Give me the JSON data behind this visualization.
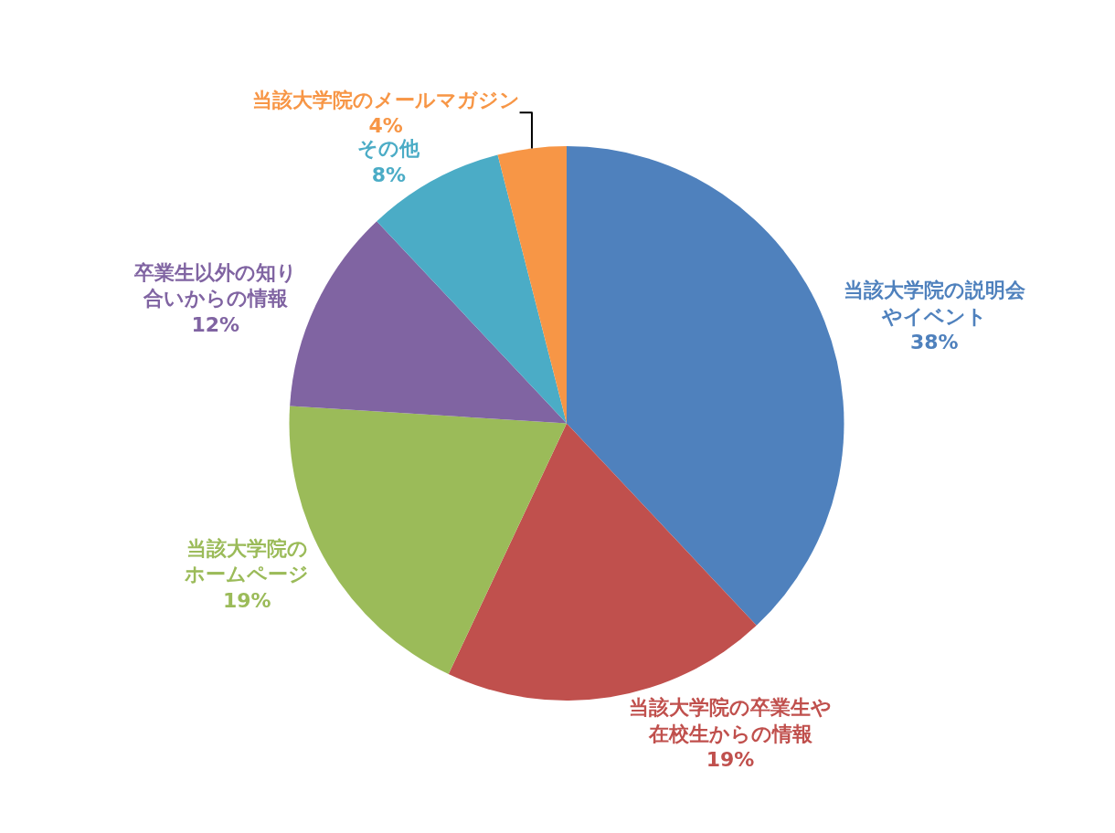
{
  "chart_data": {
    "type": "pie",
    "categories": [
      "当該大学院の説明会やイベント",
      "当該大学院の卒業生や在校生からの情報",
      "当該大学院のホームページ",
      "卒業生以外の知り合いからの情報",
      "その他",
      "当該大学院のメールマガジン"
    ],
    "values": [
      38,
      19,
      19,
      12,
      8,
      4
    ],
    "value_labels": [
      "38%",
      "19%",
      "19%",
      "12%",
      "8%",
      "4%"
    ],
    "colors": [
      "#4f81bd",
      "#c0504d",
      "#9bbb59",
      "#8064a2",
      "#4bacc6",
      "#f79646"
    ],
    "legend": false
  }
}
